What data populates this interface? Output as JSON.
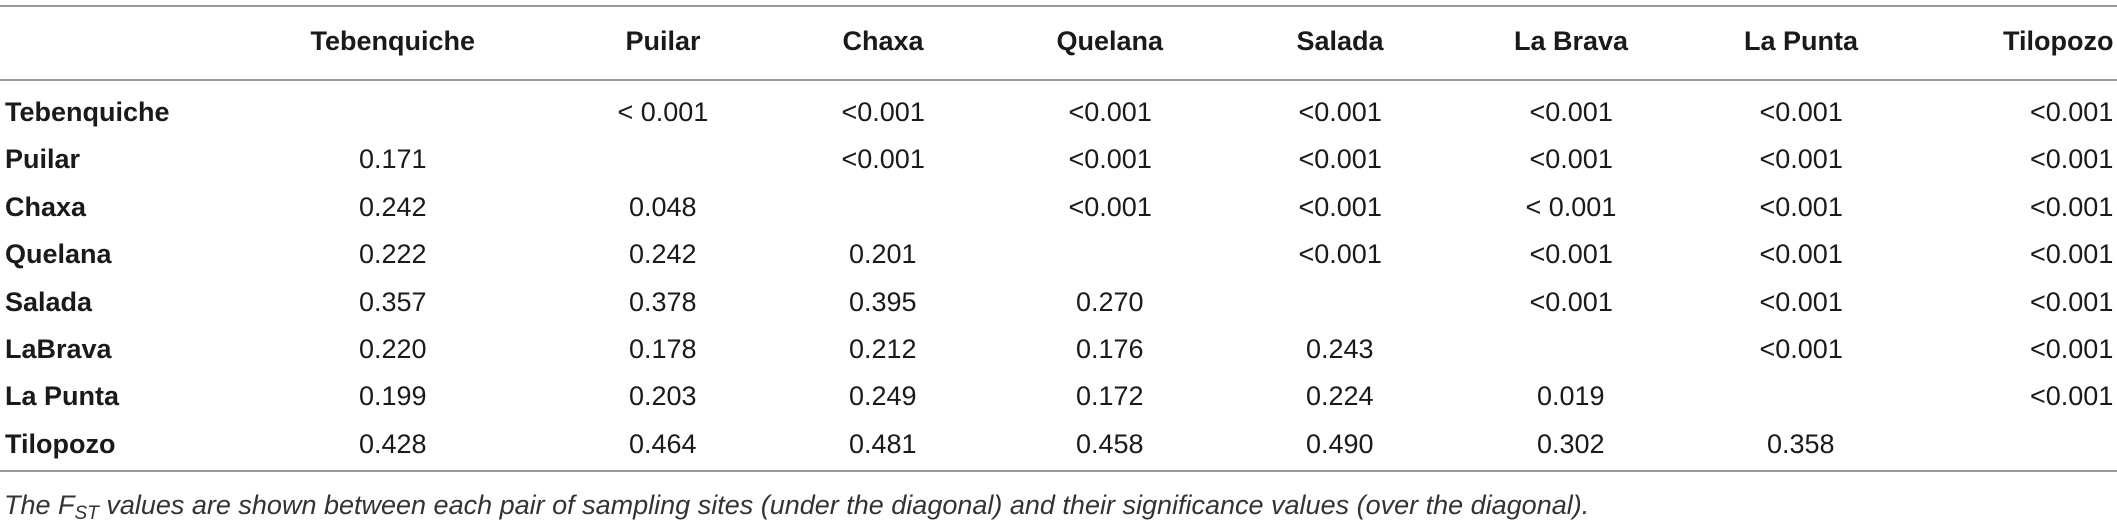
{
  "table": {
    "columns": [
      "Tebenquiche",
      "Puilar",
      "Chaxa",
      "Quelana",
      "Salada",
      "La Brava",
      "La Punta",
      "Tilopozo"
    ],
    "rows": [
      {
        "label": "Tebenquiche",
        "cells": [
          null,
          "< 0.001",
          "<0.001",
          "<0.001",
          "<0.001",
          "<0.001",
          "<0.001",
          "<0.001"
        ]
      },
      {
        "label": "Puilar",
        "cells": [
          "0.171",
          null,
          "<0.001",
          "<0.001",
          "<0.001",
          "<0.001",
          "<0.001",
          "<0.001"
        ]
      },
      {
        "label": "Chaxa",
        "cells": [
          "0.242",
          "0.048",
          null,
          "<0.001",
          "<0.001",
          "< 0.001",
          "<0.001",
          "<0.001"
        ]
      },
      {
        "label": "Quelana",
        "cells": [
          "0.222",
          "0.242",
          "0.201",
          null,
          "<0.001",
          "<0.001",
          "<0.001",
          "<0.001"
        ]
      },
      {
        "label": "Salada",
        "cells": [
          "0.357",
          "0.378",
          "0.395",
          "0.270",
          null,
          "<0.001",
          "<0.001",
          "<0.001"
        ]
      },
      {
        "label": "LaBrava",
        "cells": [
          "0.220",
          "0.178",
          "0.212",
          "0.176",
          "0.243",
          null,
          "<0.001",
          "<0.001"
        ]
      },
      {
        "label": "La Punta",
        "cells": [
          "0.199",
          "0.203",
          "0.249",
          "0.172",
          "0.224",
          "0.019",
          null,
          "<0.001"
        ]
      },
      {
        "label": "Tilopozo",
        "cells": [
          "0.428",
          "0.464",
          "0.481",
          "0.458",
          "0.490",
          "0.302",
          "0.358",
          null
        ]
      }
    ]
  },
  "caption": {
    "lead": "The",
    "symbol": "F",
    "subscript": "ST",
    "text": "values are shown between each pair of sampling sites (under the diagonal) and their significance values (over the diagonal)."
  }
}
